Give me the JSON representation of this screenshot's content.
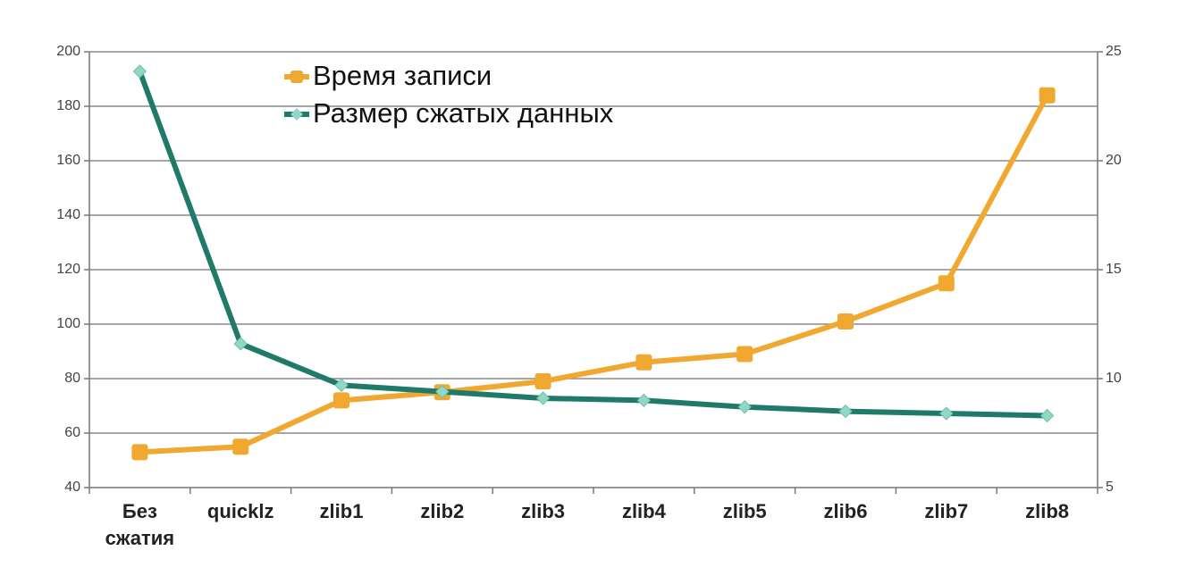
{
  "chart_data": {
    "type": "line",
    "categories": [
      [
        "Без",
        "сжатия"
      ],
      [
        "quicklz"
      ],
      [
        "zlib1"
      ],
      [
        "zlib2"
      ],
      [
        "zlib3"
      ],
      [
        "zlib4"
      ],
      [
        "zlib5"
      ],
      [
        "zlib6"
      ],
      [
        "zlib7"
      ],
      [
        "zlib8"
      ]
    ],
    "left_axis": {
      "min": 40,
      "max": 200,
      "ticks": [
        40,
        60,
        80,
        100,
        120,
        140,
        160,
        180,
        200
      ]
    },
    "right_axis": {
      "min": 5,
      "max": 25,
      "ticks": [
        5,
        10,
        15,
        20,
        25
      ]
    },
    "grid": true,
    "legend_position": "top-center",
    "series": [
      {
        "name": "Время записи",
        "axis": "left",
        "color": "#F0A830",
        "marker": "square",
        "values": [
          53,
          55,
          72,
          75,
          79,
          86,
          89,
          101,
          115,
          184
        ]
      },
      {
        "name": "Размер сжатых данных",
        "axis": "right",
        "color": "#1F7A6A",
        "marker_color": "#8ED8C4",
        "marker": "diamond",
        "values": [
          24.1,
          11.6,
          9.7,
          9.4,
          9.1,
          9.0,
          8.7,
          8.5,
          8.4,
          8.3
        ]
      }
    ]
  }
}
